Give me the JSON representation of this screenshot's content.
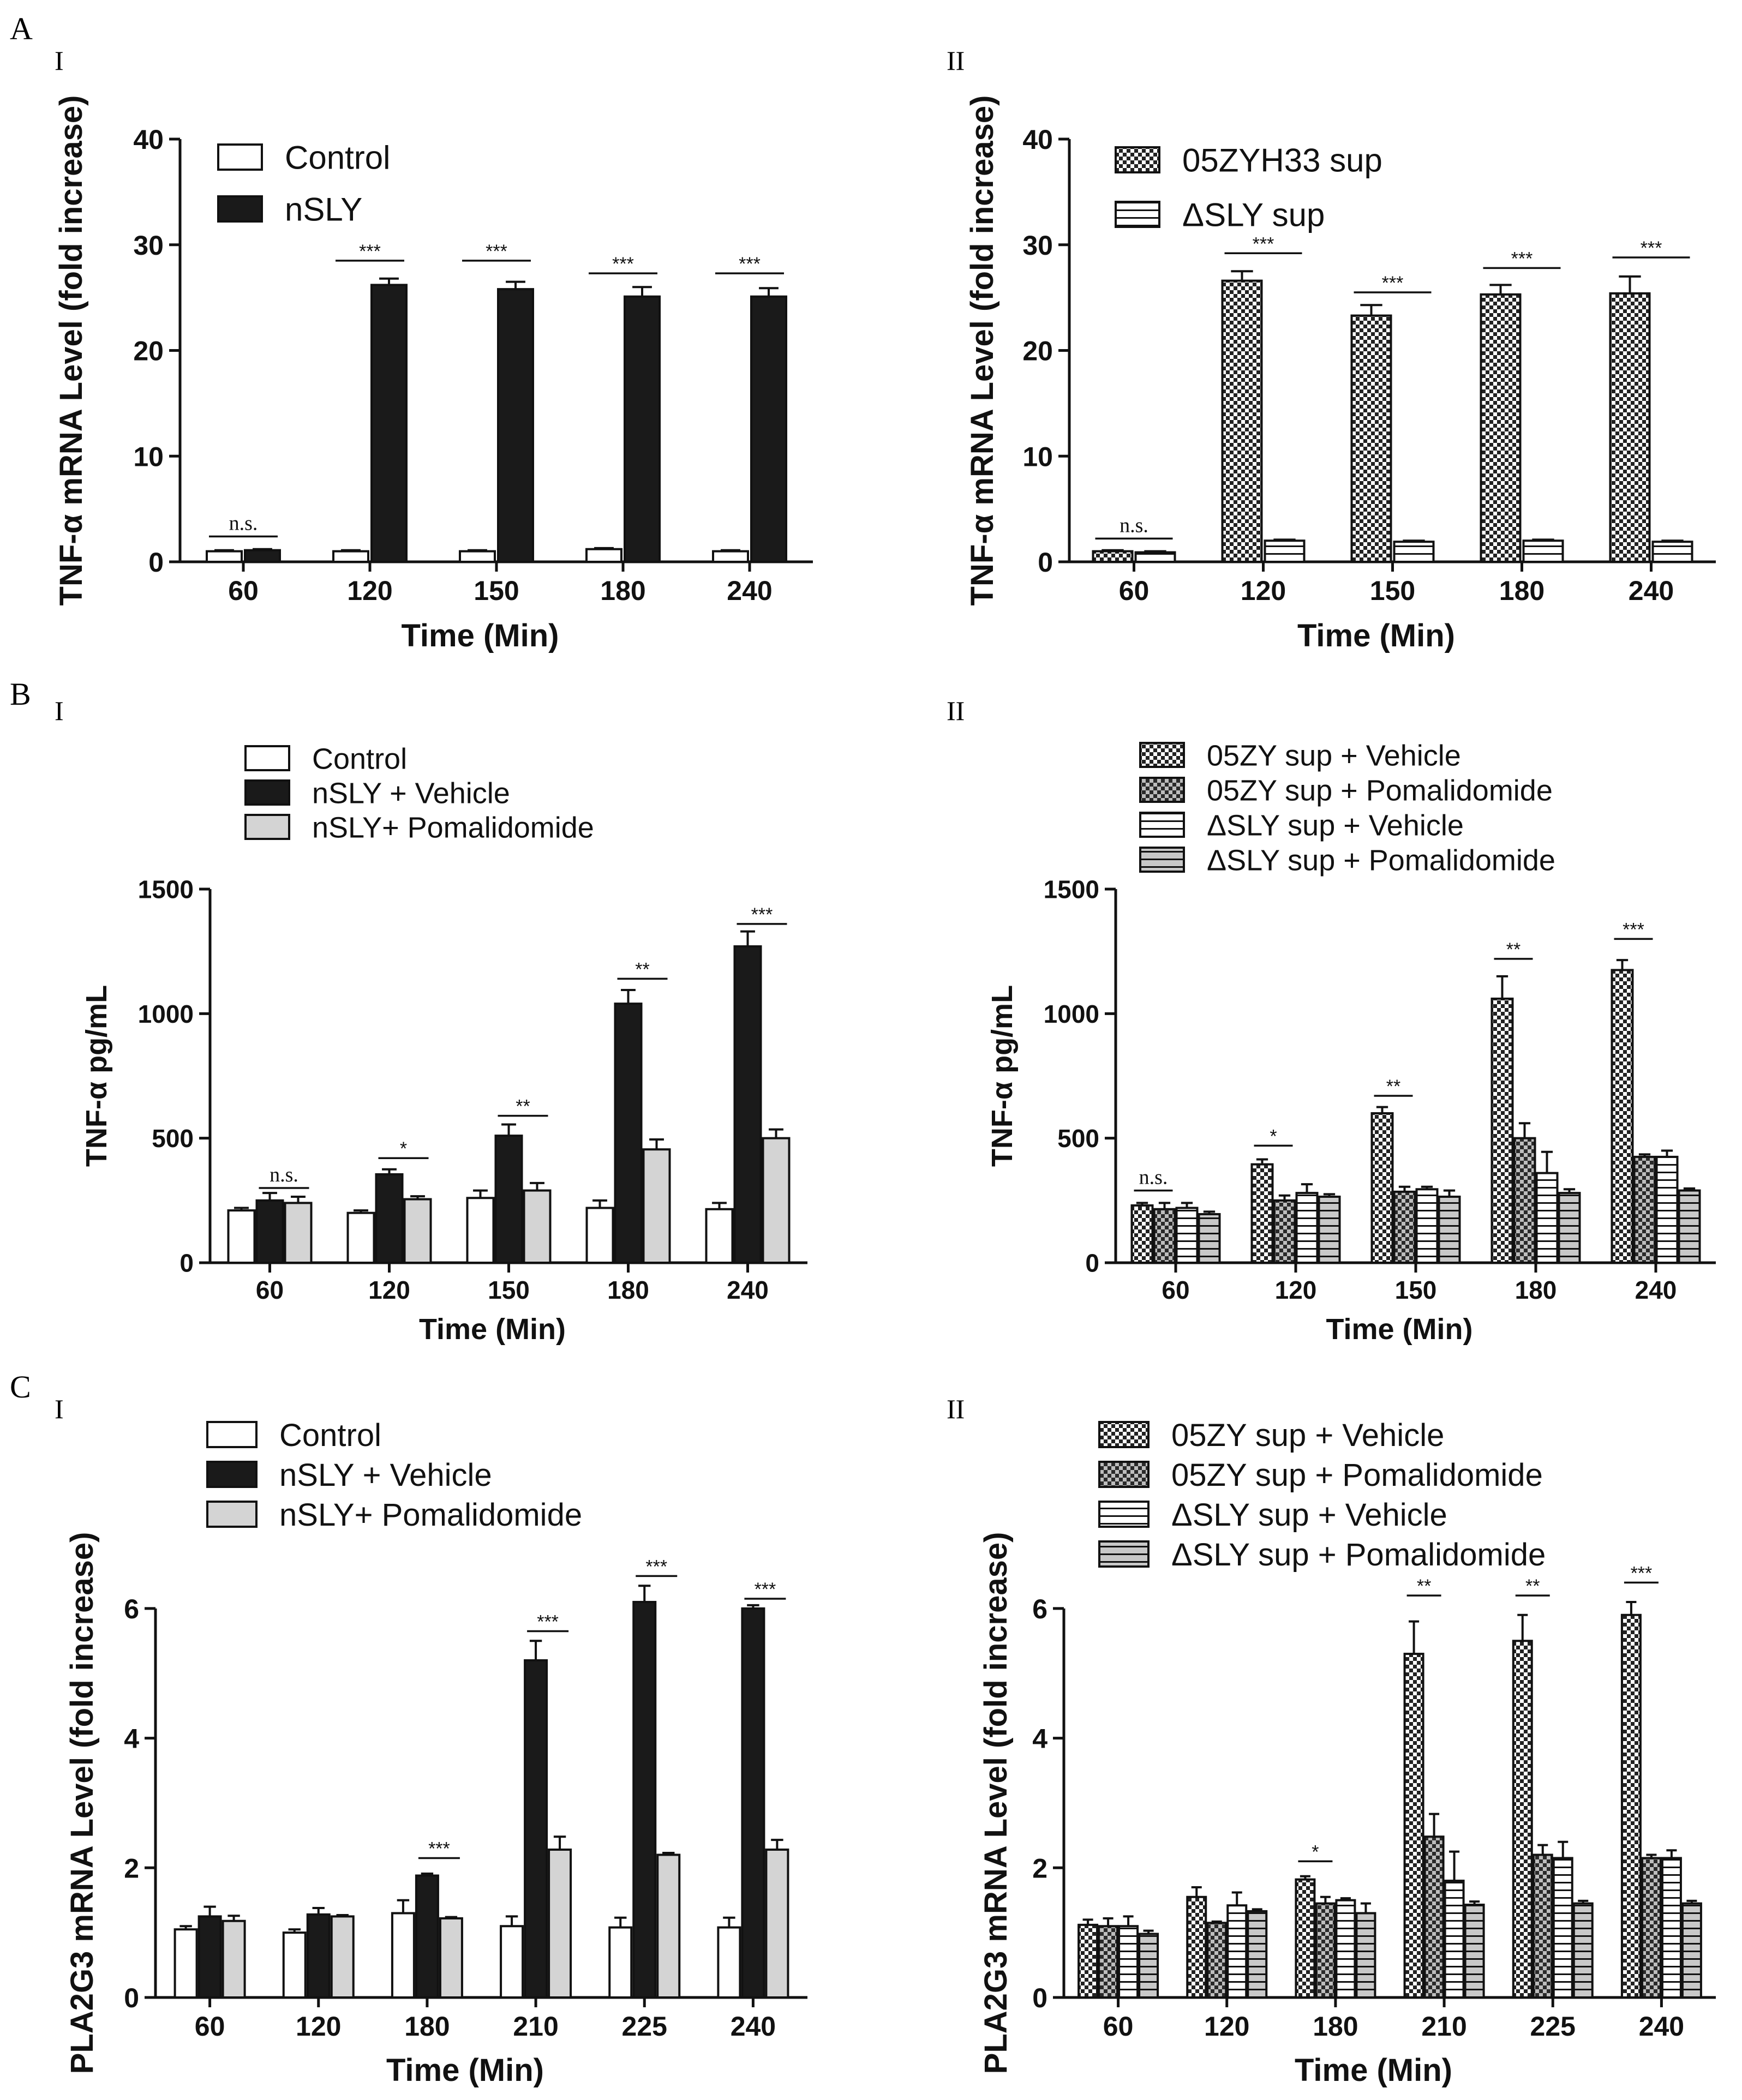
{
  "panel_letters": [
    "A",
    "B",
    "C"
  ],
  "sub_labels": [
    "I",
    "II"
  ],
  "pattern_colors": {
    "control": "#ffffff",
    "nsly": "#1a1a1a",
    "pomalidomide": "#d4d4d4",
    "ink": "#111111"
  },
  "chart_data": [
    {
      "id": "A-I",
      "type": "bar",
      "legend_position": "top-left",
      "ylabel": "TNF-α  mRNA Level (fold increase)",
      "xlabel": "Time (Min)",
      "ylim": [
        0,
        40
      ],
      "yticks": [
        0,
        10,
        20,
        30,
        40
      ],
      "categories": [
        "60",
        "120",
        "150",
        "180",
        "240"
      ],
      "series": [
        {
          "name": "Control",
          "pattern": "white",
          "values": [
            1.0,
            1.0,
            1.0,
            1.2,
            1.0
          ],
          "errors": [
            0.1,
            0.1,
            0.1,
            0.1,
            0.1
          ]
        },
        {
          "name": "nSLY",
          "pattern": "black",
          "values": [
            1.1,
            26.2,
            25.8,
            25.1,
            25.1
          ],
          "errors": [
            0.1,
            0.6,
            0.7,
            0.9,
            0.8
          ]
        }
      ],
      "annotations": [
        {
          "category": 0,
          "from": 0,
          "to": 1,
          "text": "n.s.",
          "level": 2.4
        },
        {
          "category": 1,
          "from": 0,
          "to": 1,
          "text": "***",
          "level": 28.5
        },
        {
          "category": 2,
          "from": 0,
          "to": 1,
          "text": "***",
          "level": 28.5
        },
        {
          "category": 3,
          "from": 0,
          "to": 1,
          "text": "***",
          "level": 27.3
        },
        {
          "category": 4,
          "from": 0,
          "to": 1,
          "text": "***",
          "level": 27.3
        }
      ]
    },
    {
      "id": "A-II",
      "type": "bar",
      "legend_position": "top-left",
      "ylabel": "TNF-α  mRNA Level (fold increase)",
      "xlabel": "Time (Min)",
      "ylim": [
        0,
        40
      ],
      "yticks": [
        0,
        10,
        20,
        30,
        40
      ],
      "categories": [
        "60",
        "120",
        "150",
        "180",
        "240"
      ],
      "series": [
        {
          "name": "05ZYH33 sup",
          "pattern": "checker",
          "values": [
            1.0,
            26.6,
            23.3,
            25.3,
            25.4
          ],
          "errors": [
            0.1,
            0.9,
            1.0,
            0.9,
            1.6
          ]
        },
        {
          "name": "ΔSLY sup",
          "pattern": "hstripe",
          "values": [
            0.9,
            2.0,
            1.9,
            2.0,
            1.9
          ],
          "errors": [
            0.1,
            0.1,
            0.1,
            0.1,
            0.1
          ]
        }
      ],
      "annotations": [
        {
          "category": 0,
          "from": 0,
          "to": 1,
          "text": "n.s.",
          "level": 2.2
        },
        {
          "category": 1,
          "from": 0,
          "to": 1,
          "text": "***",
          "level": 29.2
        },
        {
          "category": 2,
          "from": 0,
          "to": 1,
          "text": "***",
          "level": 25.5
        },
        {
          "category": 3,
          "from": 0,
          "to": 1,
          "text": "***",
          "level": 27.8
        },
        {
          "category": 4,
          "from": 0,
          "to": 1,
          "text": "***",
          "level": 28.8
        }
      ]
    },
    {
      "id": "B-I",
      "type": "bar",
      "legend_position": "top-left",
      "ylabel": "TNF-α  pg/mL",
      "xlabel": "Time (Min)",
      "ylim": [
        0,
        1500
      ],
      "yticks": [
        0,
        500,
        1000,
        1500
      ],
      "categories": [
        "60",
        "120",
        "150",
        "180",
        "240"
      ],
      "series": [
        {
          "name": "Control",
          "pattern": "white",
          "values": [
            210,
            200,
            260,
            220,
            215
          ],
          "errors": [
            10,
            10,
            30,
            30,
            25
          ]
        },
        {
          "name": "nSLY + Vehicle",
          "pattern": "black",
          "values": [
            250,
            355,
            510,
            1040,
            1270
          ],
          "errors": [
            30,
            20,
            45,
            55,
            60
          ]
        },
        {
          "name": "nSLY+ Pomalidomide",
          "pattern": "gray",
          "values": [
            240,
            255,
            290,
            455,
            500
          ],
          "errors": [
            25,
            12,
            30,
            40,
            35
          ]
        }
      ],
      "annotations": [
        {
          "category": 0,
          "from": 1,
          "to": 2,
          "text": "n.s.",
          "level": 300
        },
        {
          "category": 1,
          "from": 1,
          "to": 2,
          "text": "*",
          "level": 420
        },
        {
          "category": 2,
          "from": 1,
          "to": 2,
          "text": "**",
          "level": 590
        },
        {
          "category": 3,
          "from": 1,
          "to": 2,
          "text": "**",
          "level": 1140
        },
        {
          "category": 4,
          "from": 1,
          "to": 2,
          "text": "***",
          "level": 1360
        }
      ]
    },
    {
      "id": "B-II",
      "type": "bar",
      "legend_position": "top-left",
      "ylabel": "TNF-α  pg/mL",
      "xlabel": "Time (Min)",
      "ylim": [
        0,
        1500
      ],
      "yticks": [
        0,
        500,
        1000,
        1500
      ],
      "categories": [
        "60",
        "120",
        "150",
        "180",
        "240"
      ],
      "series": [
        {
          "name": "05ZY sup + Vehicle",
          "pattern": "checker",
          "values": [
            230,
            395,
            600,
            1060,
            1175
          ],
          "errors": [
            10,
            20,
            25,
            90,
            40
          ]
        },
        {
          "name": "05ZY sup + Pomalidomide",
          "pattern": "checker-gray",
          "values": [
            215,
            250,
            285,
            500,
            425
          ],
          "errors": [
            25,
            20,
            20,
            60,
            10
          ]
        },
        {
          "name": "ΔSLY sup + Vehicle",
          "pattern": "hstripe",
          "values": [
            220,
            280,
            295,
            360,
            425
          ],
          "errors": [
            20,
            35,
            10,
            85,
            25
          ]
        },
        {
          "name": "ΔSLY sup + Pomalidomide",
          "pattern": "hstripe-gray",
          "values": [
            195,
            265,
            265,
            280,
            290
          ],
          "errors": [
            10,
            10,
            25,
            15,
            8
          ]
        }
      ],
      "annotations": [
        {
          "category": 0,
          "from": 0,
          "to": 1,
          "text": "n.s.",
          "level": 290
        },
        {
          "category": 1,
          "from": 0,
          "to": 1,
          "text": "*",
          "level": 470
        },
        {
          "category": 2,
          "from": 0,
          "to": 1,
          "text": "**",
          "level": 670
        },
        {
          "category": 3,
          "from": 0,
          "to": 1,
          "text": "**",
          "level": 1220
        },
        {
          "category": 4,
          "from": 0,
          "to": 1,
          "text": "***",
          "level": 1300
        }
      ]
    },
    {
      "id": "C-I",
      "type": "bar",
      "legend_position": "top-left",
      "ylabel": "PLA2G3 mRNA Level (fold increase)",
      "xlabel": "Time (Min)",
      "ylim": [
        0,
        7
      ],
      "yticks": [
        0,
        2,
        4,
        6
      ],
      "categories": [
        "60",
        "120",
        "180",
        "210",
        "225",
        "240"
      ],
      "series": [
        {
          "name": "Control",
          "pattern": "white",
          "values": [
            1.05,
            1.0,
            1.3,
            1.1,
            1.08,
            1.08
          ],
          "errors": [
            0.05,
            0.05,
            0.2,
            0.15,
            0.15,
            0.15
          ]
        },
        {
          "name": "nSLY + Vehicle",
          "pattern": "black",
          "values": [
            1.25,
            1.28,
            1.88,
            5.2,
            6.1,
            6.0
          ],
          "errors": [
            0.15,
            0.1,
            0.03,
            0.3,
            0.25,
            0.05
          ]
        },
        {
          "name": "nSLY+ Pomalidomide",
          "pattern": "gray",
          "values": [
            1.18,
            1.25,
            1.22,
            2.28,
            2.2,
            2.28
          ],
          "errors": [
            0.08,
            0.02,
            0.02,
            0.2,
            0.03,
            0.15
          ]
        }
      ],
      "annotations": [
        {
          "category": 2,
          "from": 1,
          "to": 2,
          "text": "***",
          "level": 2.15
        },
        {
          "category": 3,
          "from": 1,
          "to": 2,
          "text": "***",
          "level": 5.65
        },
        {
          "category": 4,
          "from": 1,
          "to": 2,
          "text": "***",
          "level": 6.5
        },
        {
          "category": 5,
          "from": 1,
          "to": 2,
          "text": "***",
          "level": 6.15
        }
      ]
    },
    {
      "id": "C-II",
      "type": "bar",
      "legend_position": "top-left",
      "ylabel": "PLA2G3 mRNA Level (fold increase)",
      "xlabel": "Time (Min)",
      "ylim": [
        0,
        7
      ],
      "yticks": [
        0,
        2,
        4,
        6
      ],
      "categories": [
        "60",
        "120",
        "180",
        "210",
        "225",
        "240"
      ],
      "series": [
        {
          "name": "05ZY sup + Vehicle",
          "pattern": "checker",
          "values": [
            1.12,
            1.55,
            1.82,
            5.3,
            5.5,
            5.9
          ],
          "errors": [
            0.08,
            0.15,
            0.05,
            0.5,
            0.4,
            0.2
          ]
        },
        {
          "name": "05ZY sup + Pomalidomide",
          "pattern": "checker-gray",
          "values": [
            1.1,
            1.15,
            1.45,
            2.48,
            2.2,
            2.15
          ],
          "errors": [
            0.12,
            0.02,
            0.1,
            0.35,
            0.15,
            0.05
          ]
        },
        {
          "name": "ΔSLY sup + Vehicle",
          "pattern": "hstripe",
          "values": [
            1.1,
            1.42,
            1.5,
            1.8,
            2.15,
            2.15
          ],
          "errors": [
            0.15,
            0.2,
            0.03,
            0.45,
            0.25,
            0.12
          ]
        },
        {
          "name": "ΔSLY sup + Pomalidomide",
          "pattern": "hstripe-gray",
          "values": [
            0.98,
            1.33,
            1.3,
            1.43,
            1.45,
            1.45
          ],
          "errors": [
            0.05,
            0.03,
            0.15,
            0.05,
            0.04,
            0.04
          ]
        }
      ],
      "annotations": [
        {
          "category": 2,
          "from": 0,
          "to": 1,
          "text": "*",
          "level": 2.1
        },
        {
          "category": 3,
          "from": 0,
          "to": 1,
          "text": "**",
          "level": 6.2
        },
        {
          "category": 4,
          "from": 0,
          "to": 1,
          "text": "**",
          "level": 6.2
        },
        {
          "category": 5,
          "from": 0,
          "to": 1,
          "text": "***",
          "level": 6.4
        }
      ]
    }
  ]
}
